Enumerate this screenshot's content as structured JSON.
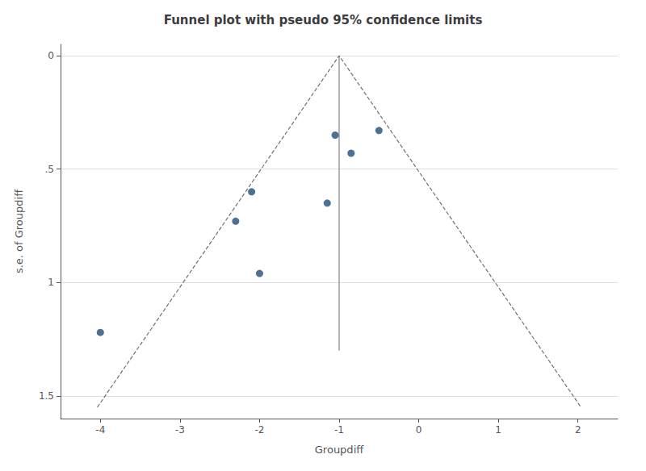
{
  "chart_data": {
    "type": "scatter",
    "title": "Funnel plot with pseudo 95% confidence limits",
    "xlabel": "Groupdiff",
    "ylabel": "s.e. of Groupdiff",
    "xlim": [
      -4.5,
      2.5
    ],
    "ylim": [
      1.6,
      -0.05
    ],
    "xticks": [
      -4,
      -3,
      -2,
      -1,
      0,
      1,
      2
    ],
    "yticks": [
      0,
      {
        "value": 0.5,
        "label": ".5"
      },
      1,
      1.5
    ],
    "grid": "y",
    "series": [
      {
        "type": "line",
        "line_style": "dashed",
        "color": "#707070",
        "x": [
          -4.038,
          -1,
          2.038
        ],
        "values": [
          1.55,
          0,
          1.55
        ]
      },
      {
        "type": "line",
        "line_style": "solid",
        "color": "#808080",
        "x": [
          -1,
          -1
        ],
        "values": [
          0,
          1.3
        ]
      },
      {
        "type": "scatter",
        "marker": "circle",
        "color": "#1f4e79",
        "x": [
          -4.0,
          -2.3,
          -2.1,
          -2.0,
          -1.15,
          -1.05,
          -0.85,
          -0.5
        ],
        "values": [
          1.22,
          0.73,
          0.6,
          0.96,
          0.65,
          0.35,
          0.43,
          0.33
        ]
      }
    ]
  }
}
